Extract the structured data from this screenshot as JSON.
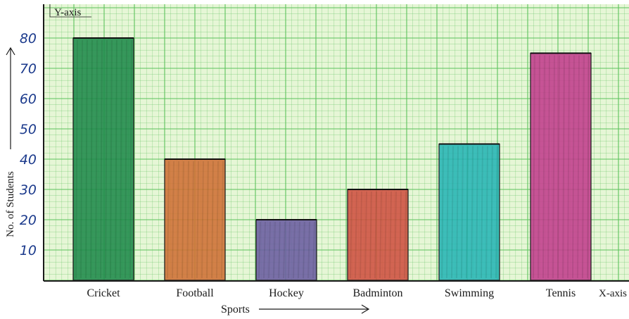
{
  "chart_data": {
    "type": "bar",
    "categories": [
      "Cricket",
      "Football",
      "Hockey",
      "Badminton",
      "Swimming",
      "Tennis"
    ],
    "values": [
      80,
      40,
      20,
      30,
      45,
      75
    ],
    "colors": [
      "#1e8a4a",
      "#cf6f34",
      "#6a5ca0",
      "#cf5040",
      "#25b5b5",
      "#c23c8c"
    ],
    "xlabel": "Sports",
    "ylabel": "No. of Students",
    "x_axis_name": "X-axis",
    "y_axis_name": "Y-axis",
    "yticks": [
      10,
      20,
      30,
      40,
      50,
      60,
      70,
      80
    ],
    "ylim": [
      0,
      85
    ],
    "grid": true,
    "background": "graph-paper",
    "grid_color": "#5cc25c",
    "paper_color": "#e6f6d6"
  }
}
